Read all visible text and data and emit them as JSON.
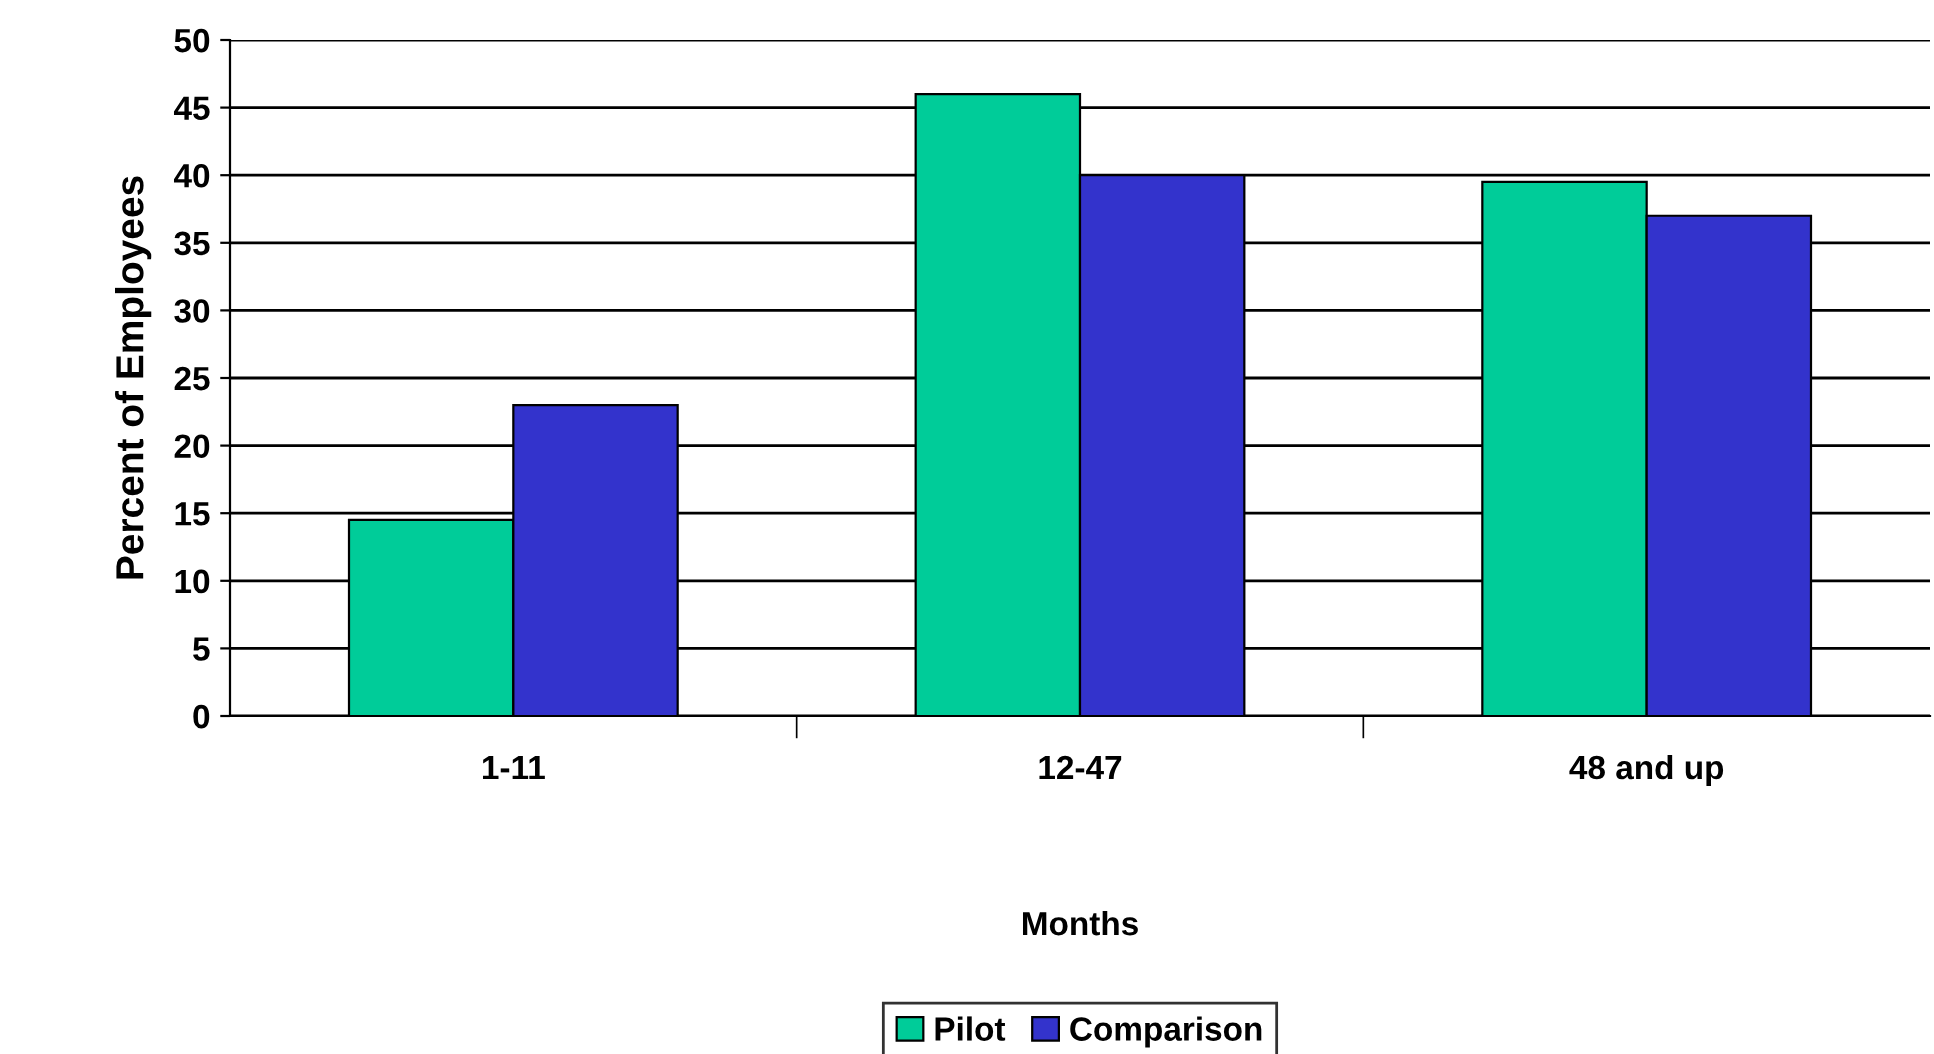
{
  "chart_data": {
    "type": "bar",
    "xlabel": "Months",
    "ylabel": "Percent of Employees",
    "categories": [
      "1-11",
      "12-47",
      "48 and up"
    ],
    "series": [
      {
        "name": "Pilot",
        "color": "#00cc99",
        "values": [
          14.5,
          46,
          39.5
        ]
      },
      {
        "name": "Comparison",
        "color": "#3333cc",
        "values": [
          23,
          40,
          37
        ]
      }
    ],
    "ylim": [
      0,
      50
    ],
    "yticks": [
      0,
      5,
      10,
      15,
      20,
      25,
      30,
      35,
      40,
      45,
      50
    ],
    "grid": "y",
    "legend": "bottom"
  }
}
